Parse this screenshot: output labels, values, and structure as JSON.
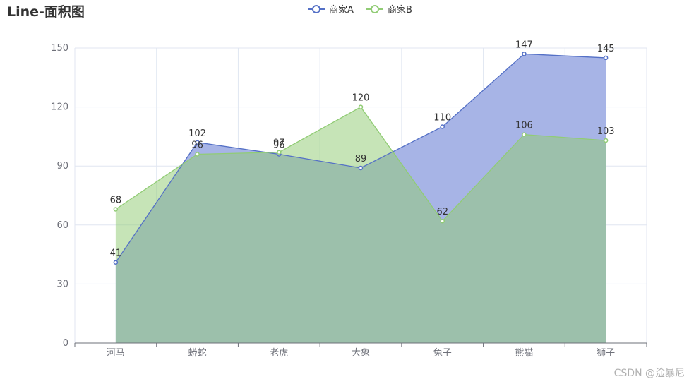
{
  "title": "Line-面积图",
  "watermark": "CSDN @淦暴尼",
  "colors": {
    "axis": "#6e7079",
    "grid": "#e0e6f1",
    "label": "#333333"
  },
  "chart_data": {
    "type": "area",
    "categories": [
      "河马",
      "蟒蛇",
      "老虎",
      "大象",
      "兔子",
      "熊猫",
      "狮子"
    ],
    "ylim": [
      0,
      150
    ],
    "yticks": [
      0,
      30,
      60,
      90,
      120,
      150
    ],
    "grid": true,
    "legend_position": "top-center",
    "series": [
      {
        "name": "商家A",
        "values": [
          41,
          102,
          96,
          89,
          110,
          147,
          145
        ],
        "color": "#5470c6",
        "area_color": "#a7b4e6",
        "opacity": 1.0
      },
      {
        "name": "商家B",
        "values": [
          68,
          96,
          97,
          120,
          62,
          106,
          103
        ],
        "color": "#91cc75",
        "area_color": "#91cc75",
        "opacity": 0.52
      }
    ]
  }
}
